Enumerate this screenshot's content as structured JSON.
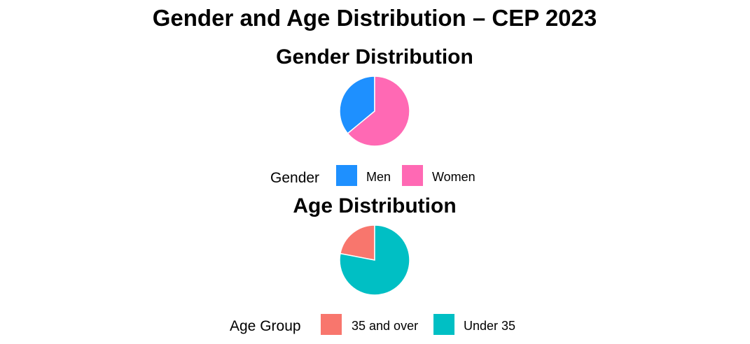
{
  "title": "Gender and Age Distribution – CEP 2023",
  "chart_data": [
    {
      "type": "pie",
      "title": "Gender Distribution",
      "legend_title": "Gender",
      "legend_position": "bottom",
      "categories": [
        "Men",
        "Women"
      ],
      "values": [
        36,
        64
      ],
      "unit": "percent (estimated)",
      "colors": [
        "#1E90FF",
        "#FF69B4"
      ],
      "start_angle": "12 o'clock",
      "direction": "counter-clockwise"
    },
    {
      "type": "pie",
      "title": "Age Distribution",
      "legend_title": "Age Group",
      "legend_position": "bottom",
      "categories": [
        "35 and over",
        "Under 35"
      ],
      "values": [
        22,
        78
      ],
      "unit": "percent (estimated)",
      "colors": [
        "#F8766D",
        "#00BFC4"
      ],
      "start_angle": "12 o'clock",
      "direction": "counter-clockwise"
    }
  ]
}
